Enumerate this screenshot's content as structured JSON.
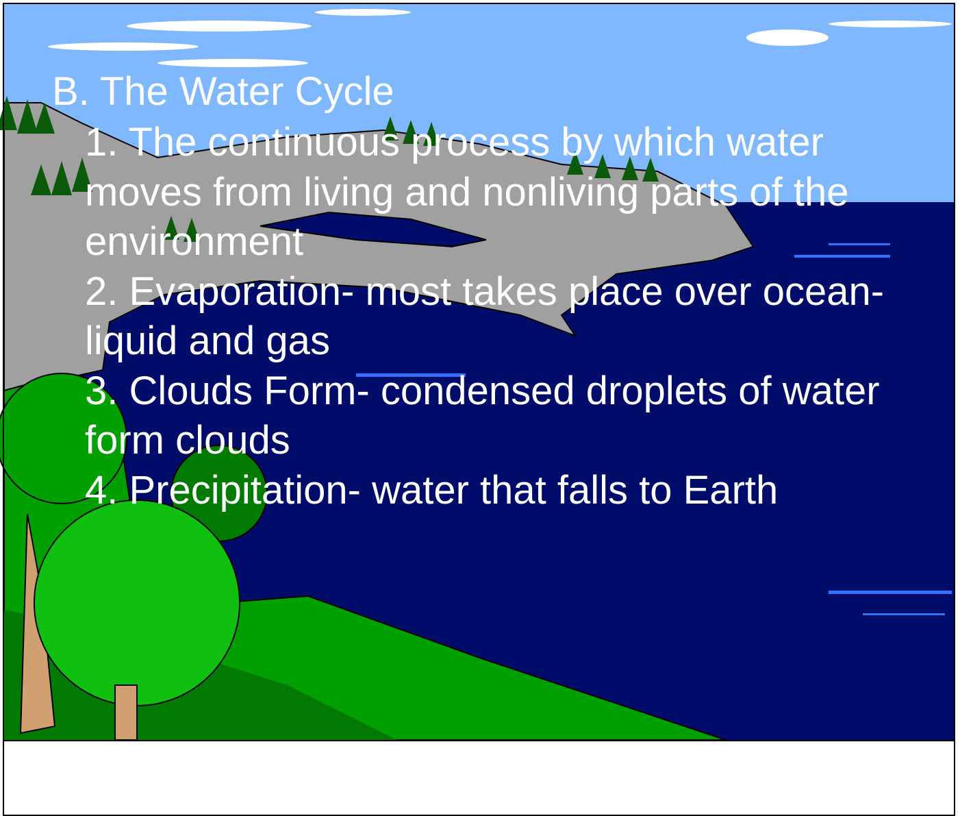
{
  "slide": {
    "title": "B. The Water Cycle",
    "items": [
      "1. The continuous process by which water moves from living and nonliving parts of the environment",
      "2. Evaporation- most takes place over ocean- liquid and gas",
      "3. Clouds Form- condensed droplets of water form clouds",
      "4. Precipitation- water that falls to Earth"
    ]
  }
}
